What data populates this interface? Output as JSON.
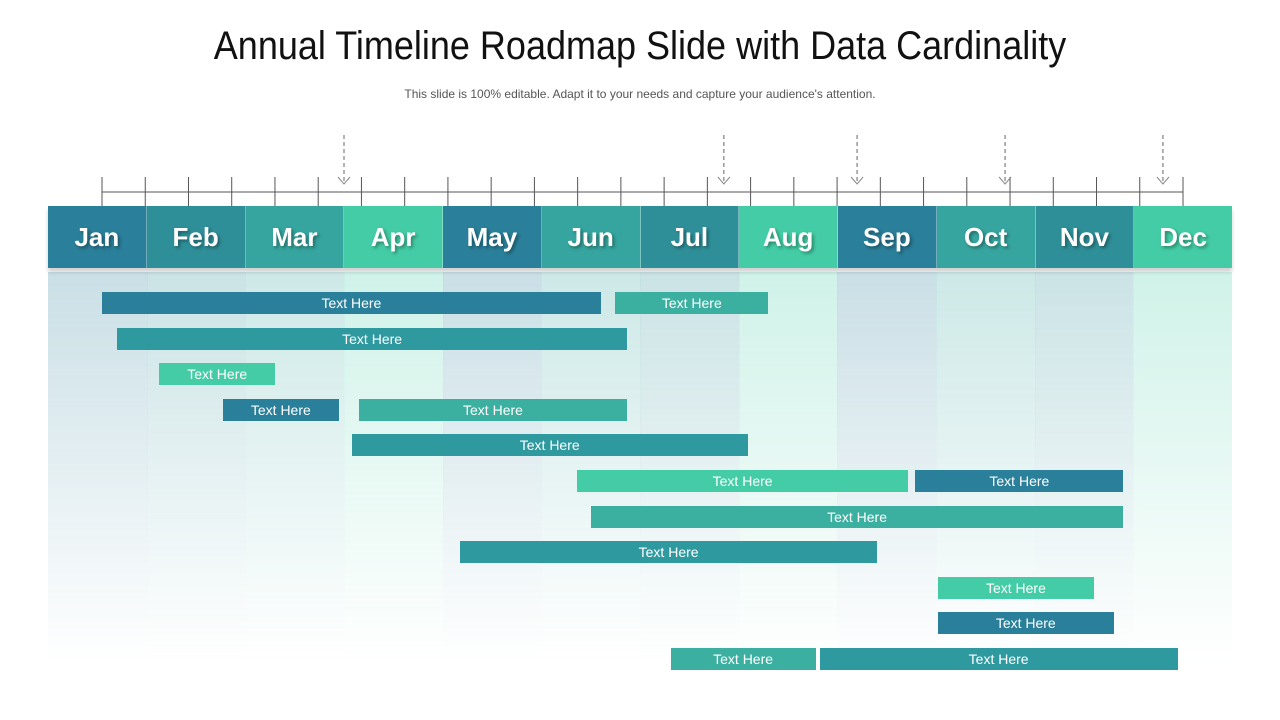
{
  "title": "Annual Timeline Roadmap Slide with Data Cardinality",
  "subtitle": "This slide is 100% editable. Adapt it to your needs and capture your audience's attention.",
  "colors": {
    "dark_teal": "#2a7f9a",
    "teal": "#2e9aa0",
    "mid_teal": "#3bafa0",
    "mint": "#43cca5"
  },
  "months": [
    {
      "label": "Jan",
      "color": "#2a7f9a"
    },
    {
      "label": "Feb",
      "color": "#2e8f98"
    },
    {
      "label": "Mar",
      "color": "#36a59f"
    },
    {
      "label": "Apr",
      "color": "#43cca5"
    },
    {
      "label": "May",
      "color": "#2a7f9a"
    },
    {
      "label": "Jun",
      "color": "#36a59f"
    },
    {
      "label": "Jul",
      "color": "#2e8f98"
    },
    {
      "label": "Aug",
      "color": "#43cca5"
    },
    {
      "label": "Sep",
      "color": "#2a7f9a"
    },
    {
      "label": "Oct",
      "color": "#36a59f"
    },
    {
      "label": "Nov",
      "color": "#2e8f98"
    },
    {
      "label": "Dec",
      "color": "#43cca5"
    }
  ],
  "bars": [
    {
      "label": "Text Here",
      "row": 0,
      "start": 0.55,
      "end": 5.6,
      "color": "#2a7f9a"
    },
    {
      "label": "Text Here",
      "row": 0,
      "start": 5.75,
      "end": 7.3,
      "color": "#3bafa0"
    },
    {
      "label": "Text Here",
      "row": 1,
      "start": 0.7,
      "end": 5.87,
      "color": "#2e9aa0"
    },
    {
      "label": "Text Here",
      "row": 2,
      "start": 1.13,
      "end": 2.3,
      "color": "#43cca5"
    },
    {
      "label": "Text Here",
      "row": 3,
      "start": 1.77,
      "end": 2.95,
      "color": "#2a7f9a"
    },
    {
      "label": "Text Here",
      "row": 3,
      "start": 3.15,
      "end": 5.87,
      "color": "#3bafa0"
    },
    {
      "label": "Text Here",
      "row": 4,
      "start": 3.08,
      "end": 7.09,
      "color": "#2e9aa0"
    },
    {
      "label": "Text Here",
      "row": 5,
      "start": 5.36,
      "end": 8.72,
      "color": "#43cca5"
    },
    {
      "label": "Text Here",
      "row": 5,
      "start": 8.79,
      "end": 10.9,
      "color": "#2a7f9a"
    },
    {
      "label": "Text Here",
      "row": 6,
      "start": 5.5,
      "end": 10.9,
      "color": "#3bafa0"
    },
    {
      "label": "Text Here",
      "row": 7,
      "start": 4.18,
      "end": 8.4,
      "color": "#2e9aa0"
    },
    {
      "label": "Text Here",
      "row": 8,
      "start": 9.02,
      "end": 10.6,
      "color": "#43cca5"
    },
    {
      "label": "Text Here",
      "row": 9,
      "start": 9.02,
      "end": 10.8,
      "color": "#2a7f9a"
    },
    {
      "label": "Text Here",
      "row": 10,
      "start": 6.31,
      "end": 7.78,
      "color": "#3bafa0"
    },
    {
      "label": "Text Here",
      "row": 10,
      "start": 7.82,
      "end": 11.45,
      "color": "#2e9aa0"
    }
  ],
  "milestones": [
    3.0,
    6.85,
    8.2,
    9.7,
    11.3
  ],
  "tick_divisions": 25
}
